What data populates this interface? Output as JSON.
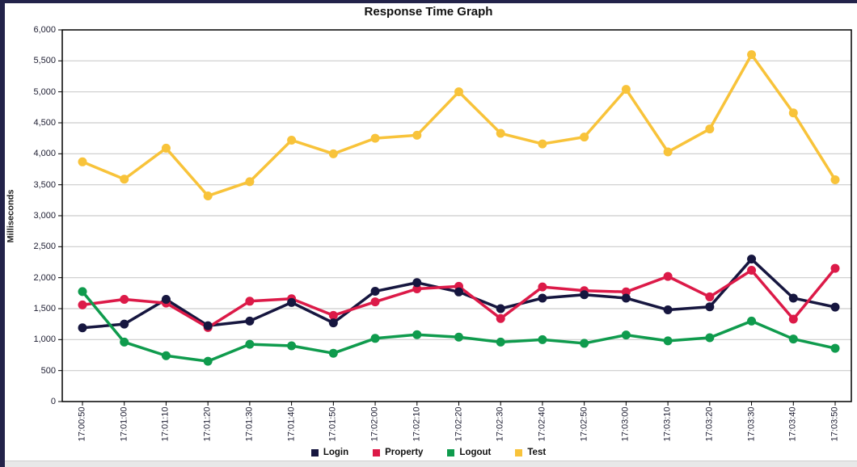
{
  "title": "Response Time Graph",
  "frame_color": "#23234a",
  "chart_data": {
    "type": "line",
    "title": "Response Time Graph",
    "xlabel": "",
    "ylabel": "Milliseconds",
    "ylim": [
      0,
      6000
    ],
    "y_tick_step": 500,
    "y_tick_labels": [
      "0",
      "500",
      "1,000",
      "1,500",
      "2,000",
      "2,500",
      "3,000",
      "3,500",
      "4,000",
      "4,500",
      "5,000",
      "5,500",
      "6,000"
    ],
    "grid": "horizontal",
    "legend_position": "bottom-center",
    "categories": [
      "17:00:50",
      "17:01:00",
      "17:01:10",
      "17:01:20",
      "17:01:30",
      "17:01:40",
      "17:01:50",
      "17:02:00",
      "17:02:10",
      "17:02:20",
      "17:02:30",
      "17:02:40",
      "17:02:50",
      "17:03:00",
      "17:03:10",
      "17:03:20",
      "17:03:30",
      "17:03:40",
      "17:03:50"
    ],
    "series": [
      {
        "name": "Login",
        "color": "#16163f",
        "values": [
          1190,
          1250,
          1650,
          1225,
          1300,
          1600,
          1270,
          1780,
          1920,
          1770,
          1500,
          1670,
          1725,
          1670,
          1480,
          1530,
          2300,
          1670,
          1525
        ]
      },
      {
        "name": "Property",
        "color": "#dc1a48",
        "values": [
          1560,
          1650,
          1590,
          1195,
          1620,
          1660,
          1390,
          1610,
          1820,
          1860,
          1340,
          1850,
          1790,
          1770,
          2020,
          1690,
          2120,
          1330,
          2150
        ]
      },
      {
        "name": "Logout",
        "color": "#0f9b4d",
        "values": [
          1775,
          960,
          740,
          650,
          925,
          900,
          780,
          1020,
          1080,
          1040,
          960,
          1000,
          940,
          1075,
          980,
          1030,
          1300,
          1010,
          860
        ]
      },
      {
        "name": "Test",
        "color": "#f8c33a",
        "values": [
          3870,
          3590,
          4090,
          3320,
          3550,
          4220,
          4000,
          4250,
          4300,
          5000,
          4330,
          4160,
          4270,
          5040,
          4030,
          4400,
          5600,
          4660,
          3580
        ]
      }
    ],
    "colors": {
      "grid": "#cccccc",
      "plot_border": "#000000",
      "tick_text": "#1c1c30"
    }
  }
}
